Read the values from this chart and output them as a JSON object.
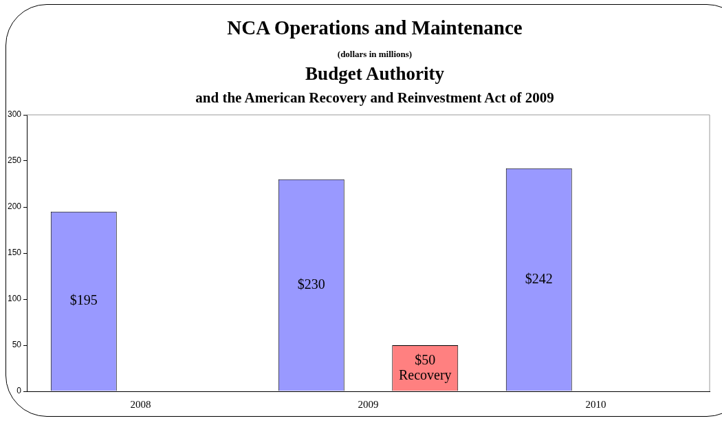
{
  "chart_data": {
    "type": "bar",
    "title": "NCA Operations and Maintenance",
    "subtitle": "(dollars in millions)",
    "annotations": [
      "Budget Authority",
      "and the American Recovery and Reinvestment Act of 2009"
    ],
    "categories": [
      "2008",
      "2009",
      "2010"
    ],
    "series": [
      {
        "color": "#9999ff",
        "values": [
          195,
          230,
          242
        ],
        "value_labels": [
          "$195",
          "$230",
          "$242"
        ]
      },
      {
        "color": "#ff8080",
        "values": [
          null,
          50,
          null
        ],
        "value_labels": [
          null,
          "$50 Recovery",
          null
        ]
      }
    ],
    "ylim": [
      0,
      300
    ],
    "yticks": [
      0,
      50,
      100,
      150,
      200,
      250,
      300
    ],
    "grid": false,
    "legend": false
  }
}
